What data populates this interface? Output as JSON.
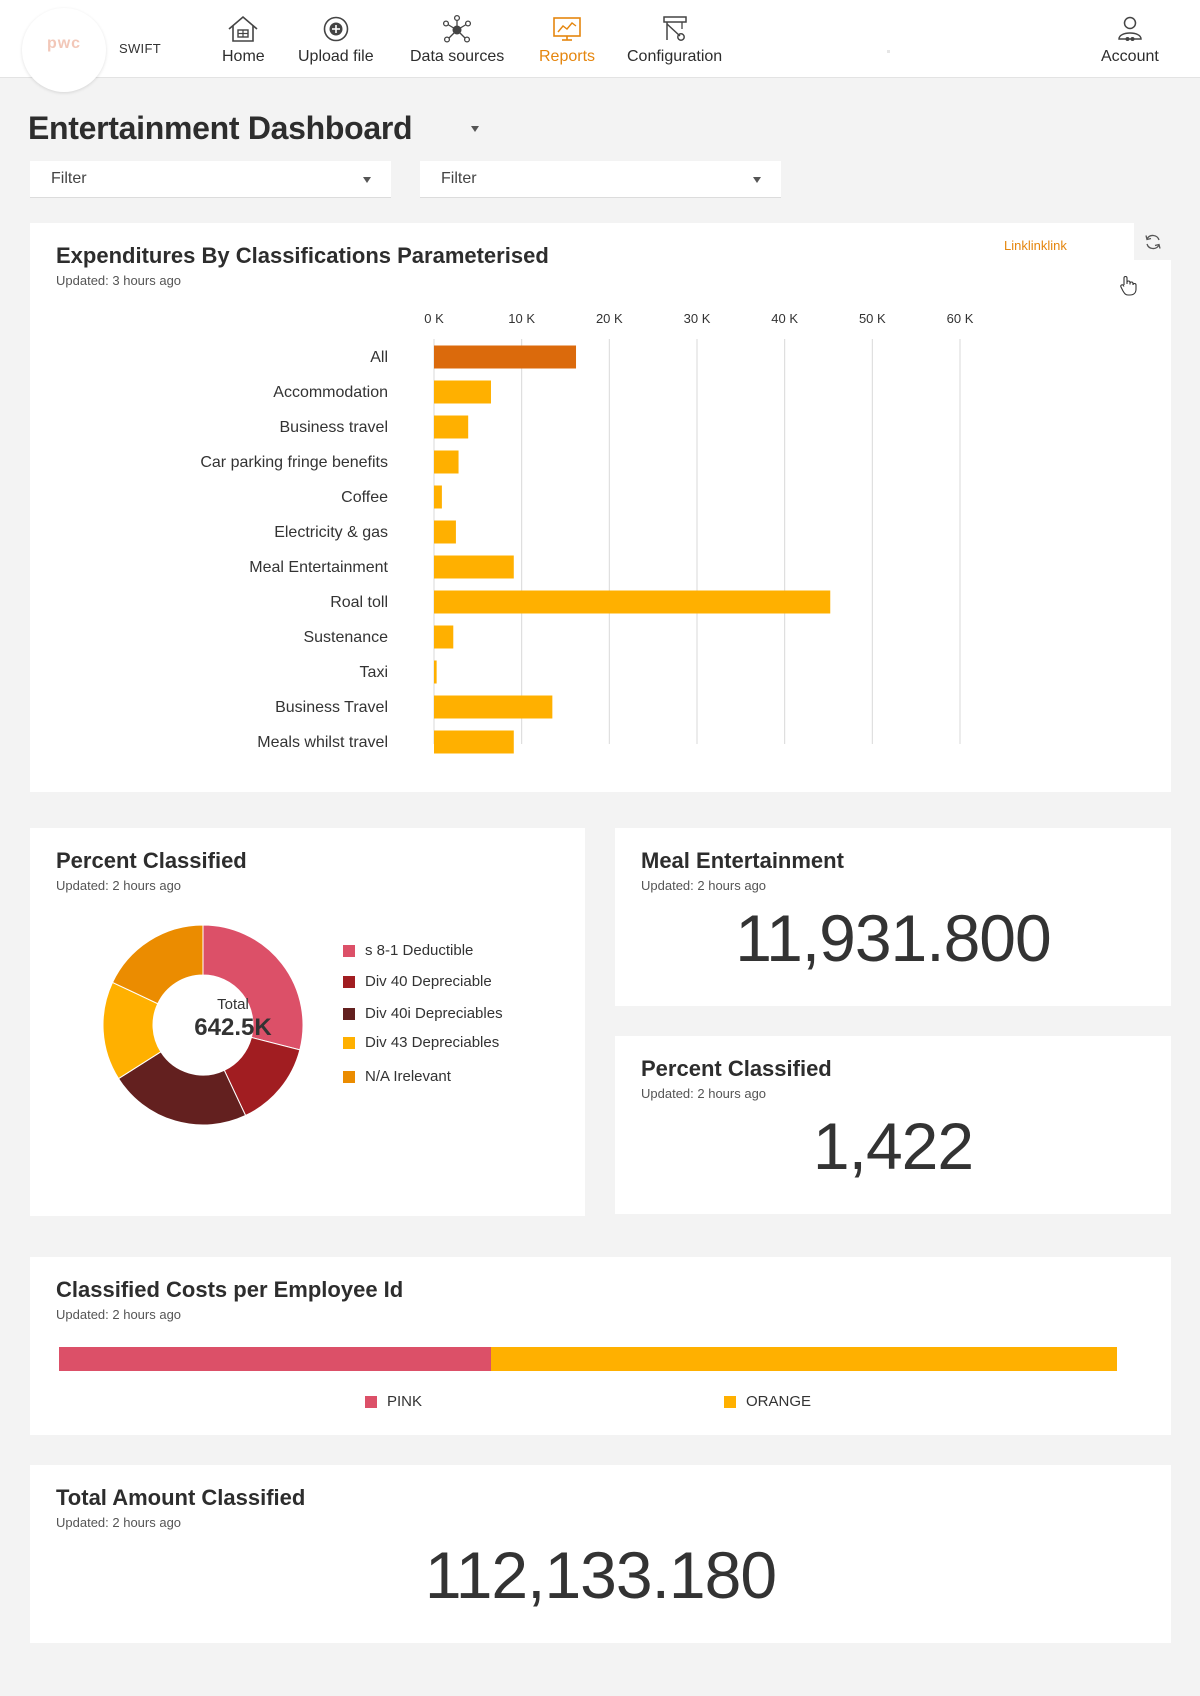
{
  "nav": {
    "logo_text": "pwc",
    "brand": "SWIFT",
    "items": [
      {
        "label": "Home",
        "icon": "home-icon"
      },
      {
        "label": "Upload file",
        "icon": "upload-icon"
      },
      {
        "label": "Data sources",
        "icon": "data-sources-icon"
      },
      {
        "label": "Reports",
        "icon": "reports-icon",
        "active": true
      },
      {
        "label": "Configuration",
        "icon": "configuration-icon"
      }
    ],
    "account_label": "Account"
  },
  "header": {
    "title": "Entertainment Dashboard",
    "filters": [
      {
        "value": "Filter"
      },
      {
        "value": "Filter"
      }
    ]
  },
  "expenditures": {
    "title": "Expenditures By Classifications Parameterised",
    "updated": "Updated: 3 hours ago",
    "link": "Linklinklink"
  },
  "percent_classified_donut": {
    "title": "Percent Classified",
    "updated": "Updated: 2 hours ago",
    "total_label": "Total",
    "total_value": "642.5K"
  },
  "meal_entertainment": {
    "title": "Meal Entertainment",
    "updated": "Updated: 2 hours ago",
    "value": "11,931.800"
  },
  "percent_classified_count": {
    "title": "Percent Classified",
    "updated": "Updated: 2 hours ago",
    "value": "1,422"
  },
  "employee_costs": {
    "title": "Classified Costs per Employee Id",
    "updated": "Updated: 2 hours ago"
  },
  "total_amount": {
    "title": "Total Amount Classified",
    "updated": "Updated: 2 hours ago",
    "value": "112,133.180"
  },
  "colors": {
    "orange_dark": "#db6a0c",
    "orange": "#ffb000",
    "accent": "#e5860e",
    "pink": "#dc5068",
    "red": "#a11d21",
    "maroon": "#63201f",
    "amber": "#ffb000",
    "tangerine": "#eb8c00"
  },
  "chart_data": [
    {
      "type": "bar",
      "orientation": "horizontal",
      "categories": [
        "All",
        "Accommodation",
        "Business travel",
        "Car parking fringe benefits",
        "Coffee",
        "Electricity & gas",
        "Meal Entertainment",
        "Roal toll",
        "Sustenance",
        "Taxi",
        "Business Travel",
        "Meals whilst travel"
      ],
      "values": [
        16200,
        6500,
        3900,
        2800,
        900,
        2500,
        9100,
        45200,
        2200,
        300,
        13500,
        9100
      ],
      "xlim": [
        0,
        60000
      ],
      "xticks": [
        0,
        10000,
        20000,
        30000,
        40000,
        50000,
        60000
      ],
      "xtick_labels": [
        "0 K",
        "10 K",
        "20 K",
        "30 K",
        "40 K",
        "50 K",
        "60 K"
      ],
      "axis_position": "top",
      "grid": true
    },
    {
      "type": "pie",
      "donut": true,
      "labels": [
        "s 8-1 Deductible",
        "Div 40 Depreciable",
        "Div 40i Depreciables",
        "Div 43  Depreciables",
        "N/A Irelevant"
      ],
      "values": [
        29,
        14,
        23,
        16,
        18
      ],
      "colors": [
        "#dc5068",
        "#a11d21",
        "#63201f",
        "#ffb000",
        "#eb8c00"
      ],
      "legend": "right"
    },
    {
      "type": "bar",
      "stacked": true,
      "orientation": "horizontal",
      "series": [
        {
          "name": "PINK",
          "value": 40.8,
          "color": "#dc5068"
        },
        {
          "name": "ORANGE",
          "value": 59.2,
          "color": "#ffb000"
        }
      ],
      "legend": "bottom"
    }
  ]
}
